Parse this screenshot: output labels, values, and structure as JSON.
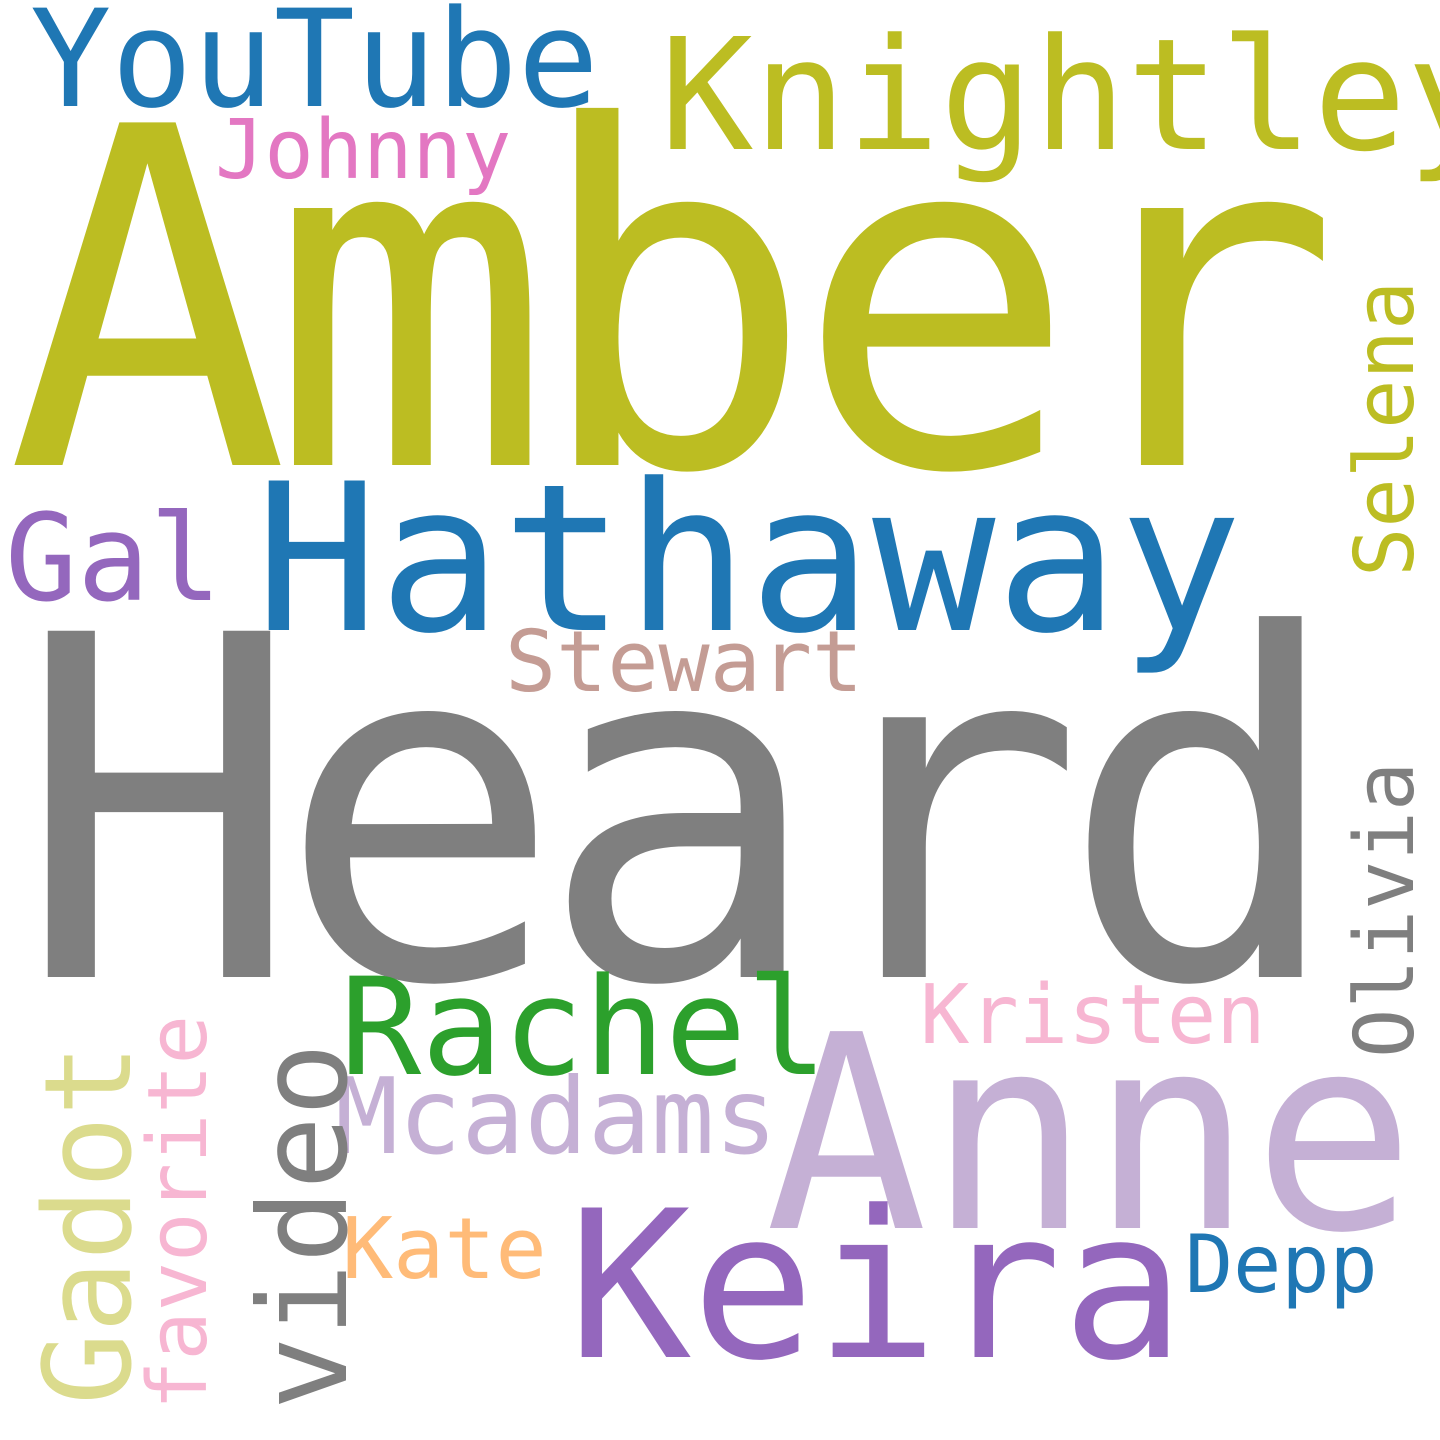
{
  "words": {
    "amber": {
      "text": "Amber",
      "color": "#bcbd22"
    },
    "heard": {
      "text": "Heard",
      "color": "#7f7f7f"
    },
    "hathaway": {
      "text": "Hathaway",
      "color": "#1f77b4"
    },
    "anne": {
      "text": "Anne",
      "color": "#c5b0d5"
    },
    "keira": {
      "text": "Keira",
      "color": "#9467bd"
    },
    "knightley": {
      "text": "Knightley",
      "color": "#bcbd22"
    },
    "youtube": {
      "text": "YouTube",
      "color": "#1f77b4"
    },
    "johnny": {
      "text": "Johnny",
      "color": "#e377c2"
    },
    "gal": {
      "text": "Gal",
      "color": "#9467bd"
    },
    "selena": {
      "text": "Selena",
      "color": "#bcbd22"
    },
    "stewart": {
      "text": "Stewart",
      "color": "#c49c94"
    },
    "olivia": {
      "text": "Olivia",
      "color": "#7f7f7f"
    },
    "rachel": {
      "text": "Rachel",
      "color": "#2ca02c"
    },
    "kristen": {
      "text": "Kristen",
      "color": "#f7b6d2"
    },
    "mcadams": {
      "text": "Mcadams",
      "color": "#c5b0d5"
    },
    "video": {
      "text": "video",
      "color": "#7f7f7f"
    },
    "gadot": {
      "text": "Gadot",
      "color": "#dbdb8d"
    },
    "favorite": {
      "text": "favorite",
      "color": "#f7b6d2"
    },
    "kate": {
      "text": "Kate",
      "color": "#ffbb78"
    },
    "depp": {
      "text": "Depp",
      "color": "#1f77b4"
    }
  }
}
